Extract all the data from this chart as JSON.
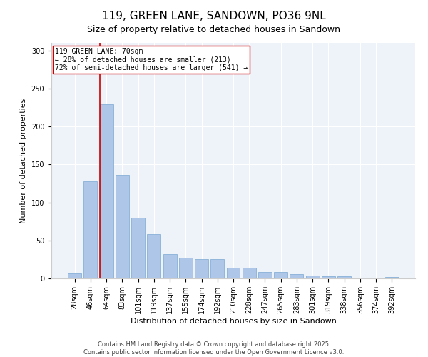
{
  "title": "119, GREEN LANE, SANDOWN, PO36 9NL",
  "subtitle": "Size of property relative to detached houses in Sandown",
  "xlabel": "Distribution of detached houses by size in Sandown",
  "ylabel": "Number of detached properties",
  "categories": [
    "28sqm",
    "46sqm",
    "64sqm",
    "83sqm",
    "101sqm",
    "119sqm",
    "137sqm",
    "155sqm",
    "174sqm",
    "192sqm",
    "210sqm",
    "228sqm",
    "247sqm",
    "265sqm",
    "283sqm",
    "301sqm",
    "319sqm",
    "338sqm",
    "356sqm",
    "374sqm",
    "392sqm"
  ],
  "values": [
    7,
    128,
    229,
    136,
    80,
    58,
    32,
    27,
    25,
    25,
    14,
    14,
    8,
    8,
    6,
    4,
    3,
    3,
    1,
    0,
    2
  ],
  "bar_color": "#aec6e8",
  "bar_edge_color": "#7aa8d2",
  "vline_color": "#cc0000",
  "annotation_text": "119 GREEN LANE: 70sqm\n← 28% of detached houses are smaller (213)\n72% of semi-detached houses are larger (541) →",
  "annotation_box_color": "#ffffff",
  "annotation_box_edge_color": "#cc0000",
  "ylim": [
    0,
    310
  ],
  "yticks": [
    0,
    50,
    100,
    150,
    200,
    250,
    300
  ],
  "bg_color": "#eef2f9",
  "footer": "Contains HM Land Registry data © Crown copyright and database right 2025.\nContains public sector information licensed under the Open Government Licence v3.0.",
  "title_fontsize": 11,
  "subtitle_fontsize": 9,
  "axis_label_fontsize": 8,
  "tick_fontsize": 7,
  "annotation_fontsize": 7,
  "footer_fontsize": 6
}
